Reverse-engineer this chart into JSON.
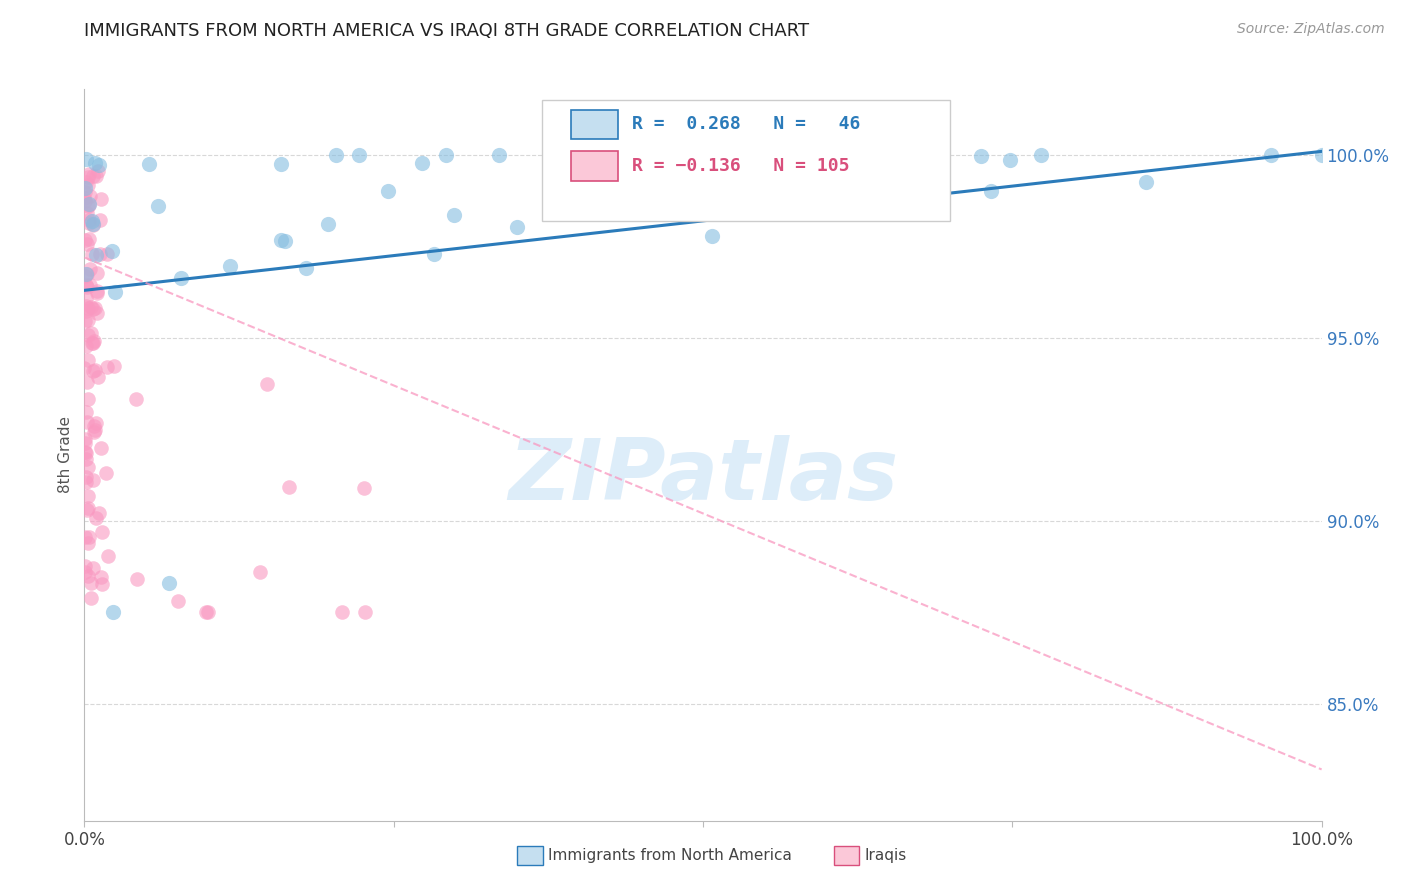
{
  "title": "IMMIGRANTS FROM NORTH AMERICA VS IRAQI 8TH GRADE CORRELATION CHART",
  "source": "Source: ZipAtlas.com",
  "ylabel": "8th Grade",
  "ytick_labels": [
    "100.0%",
    "95.0%",
    "90.0%",
    "85.0%"
  ],
  "ytick_positions": [
    1.0,
    0.95,
    0.9,
    0.85
  ],
  "xmin": 0.0,
  "xmax": 1.0,
  "ymin": 0.818,
  "ymax": 1.018,
  "blue_color": "#85bde0",
  "pink_color": "#f998c0",
  "blue_line_color": "#2b7bba",
  "pink_line_color": "#f998c0",
  "blue_line_x0": 0.0,
  "blue_line_x1": 1.0,
  "blue_line_y0": 0.963,
  "blue_line_y1": 1.001,
  "pink_line_x0": 0.0,
  "pink_line_x1": 1.0,
  "pink_line_y0": 0.972,
  "pink_line_y1": 0.832,
  "legend_text1": "R =  0.268   N =   46",
  "legend_text2": "R = −0.136   N = 105",
  "legend_blue_color": "#2b7bba",
  "legend_pink_color": "#d94f7c",
  "legend_box_blue_face": "#c5dff0",
  "legend_box_blue_edge": "#2b7bba",
  "legend_box_pink_face": "#fbc8d8",
  "legend_box_pink_edge": "#d94f7c",
  "watermark": "ZIPatlas",
  "watermark_color": "#d8eaf8",
  "grid_color": "#d8d8d8",
  "bottom_legend_blue": "Immigrants from North America",
  "bottom_legend_pink": "Iraqis"
}
